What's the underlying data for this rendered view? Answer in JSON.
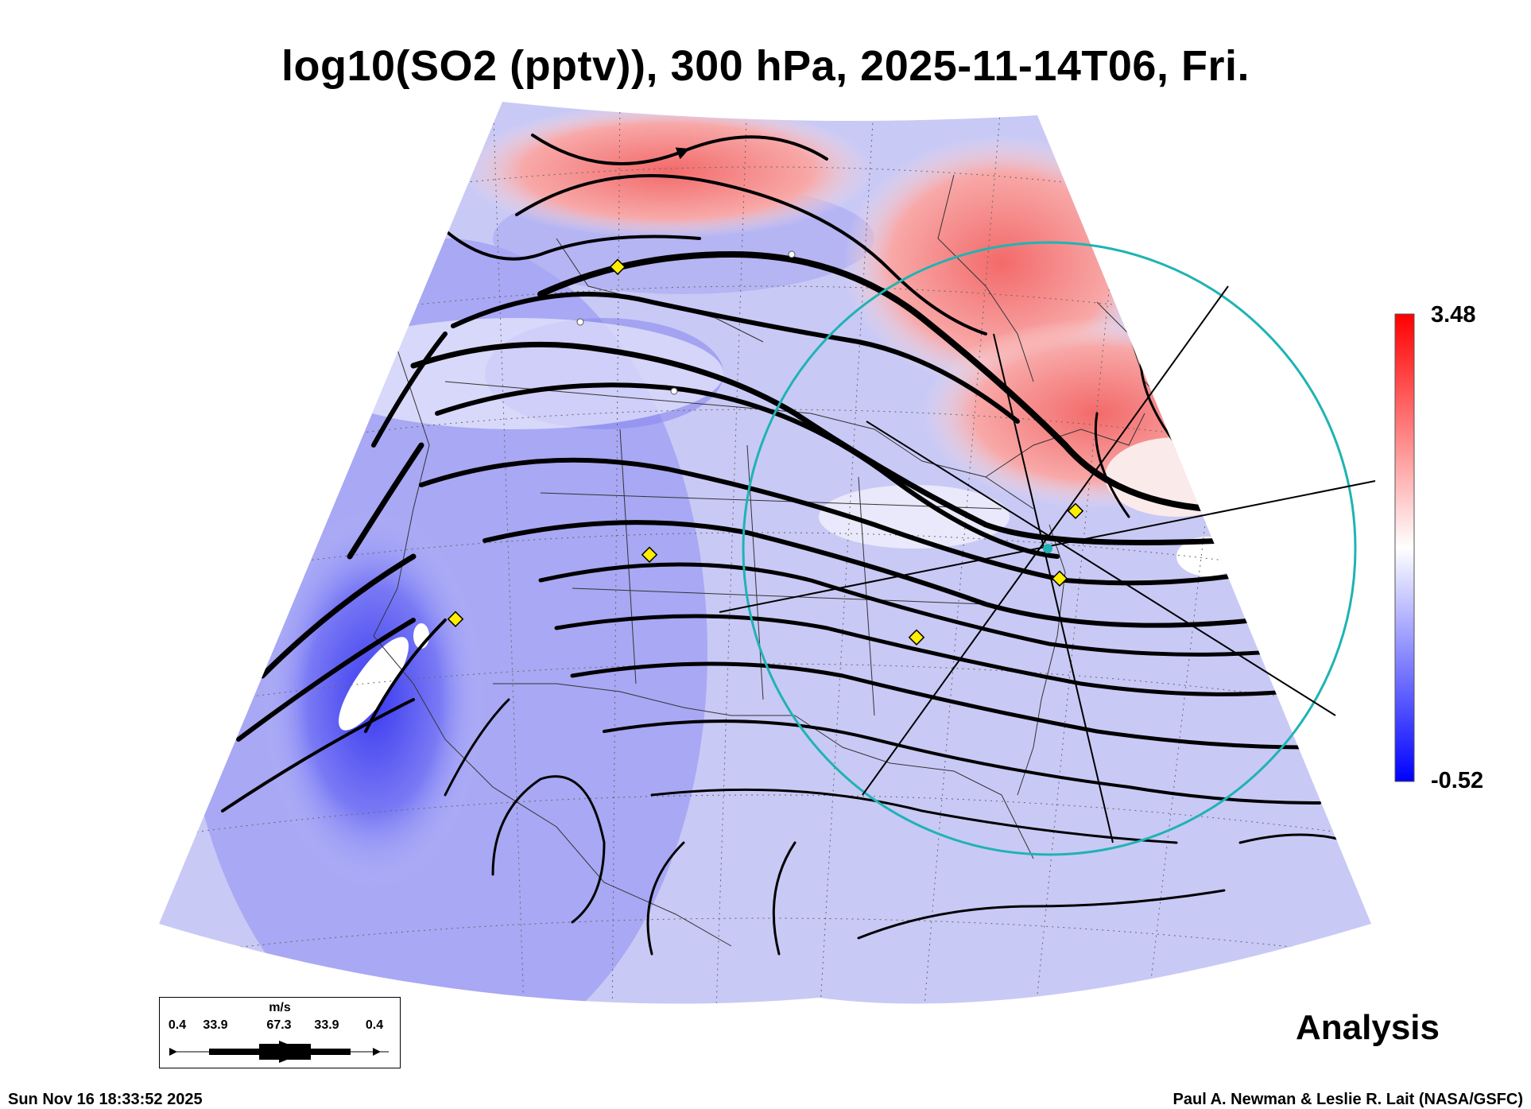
{
  "title": "log10(SO2 (pptv)), 300 hPa, 2025-11-14T06, Fri.",
  "colorbar": {
    "max": "3.48",
    "min": "-0.52",
    "colors": [
      "#ff0000",
      "#ffffff",
      "#0000ff"
    ]
  },
  "product_label": "Analysis",
  "legend": {
    "unit": "m/s",
    "ticks": [
      "0.4",
      "33.9",
      "67.3",
      "33.9",
      "0.4"
    ]
  },
  "footer": {
    "timestamp": "Sun Nov 16 18:33:52 2025",
    "credit": "Paul A. Newman & Leslie R. Lait (NASA/GSFC)"
  },
  "overlay": {
    "circle_color": "#1fb3b3",
    "station_marker_color": "#ffee00"
  }
}
